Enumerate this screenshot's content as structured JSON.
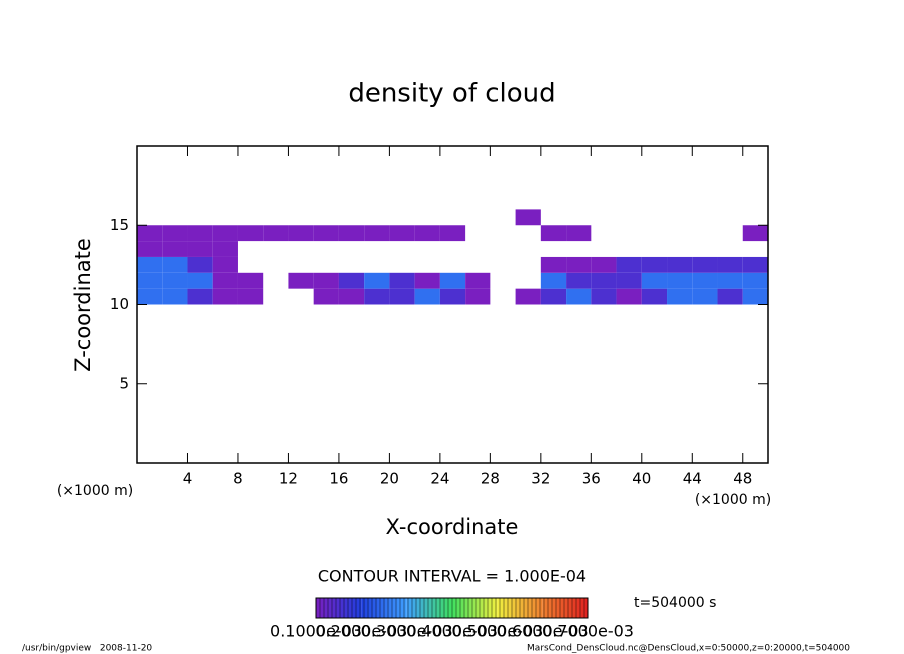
{
  "chart_data": {
    "type": "heatmap",
    "title": "density of cloud",
    "x_label": "X-coordinate",
    "y_label": "Z-coordinate",
    "x_unit": "(×1000 m)",
    "y_unit": "(×1000 m)",
    "xlim": [
      0,
      50
    ],
    "xticks": [
      4,
      8,
      12,
      16,
      20,
      24,
      28,
      32,
      36,
      40,
      44,
      48
    ],
    "ylim": [
      0,
      20
    ],
    "yticks": [
      5,
      10,
      15
    ],
    "x": [
      0,
      2,
      4,
      6,
      8,
      10,
      12,
      14,
      16,
      18,
      20,
      22,
      24,
      26,
      28,
      30,
      32,
      34,
      36,
      38,
      40,
      42,
      44,
      46,
      48,
      50
    ],
    "y": [
      10,
      11,
      12,
      13,
      14,
      15,
      16
    ],
    "values": [
      [
        0.00025,
        0.00025,
        0.00015,
        0.0001,
        0.0001,
        null,
        null,
        0.0001,
        0.0001,
        0.00015,
        0.00015,
        0.00025,
        0.00015,
        0.0001,
        null,
        0.0001,
        0.00015,
        0.00025,
        0.00015,
        0.0001,
        0.00015,
        0.00025,
        0.00025,
        0.00015,
        0.00025
      ],
      [
        0.00025,
        0.00025,
        0.00025,
        0.0001,
        0.0001,
        null,
        0.0001,
        0.0001,
        0.00015,
        0.00025,
        0.00015,
        0.0001,
        0.00025,
        0.0001,
        null,
        null,
        0.00025,
        0.00015,
        0.00015,
        0.00015,
        0.00025,
        0.00025,
        0.00025,
        0.00025,
        0.00025
      ],
      [
        0.00025,
        0.00025,
        0.00015,
        0.0001,
        null,
        null,
        null,
        null,
        null,
        null,
        null,
        null,
        null,
        null,
        null,
        null,
        0.0001,
        0.0001,
        0.0001,
        0.00015,
        0.00015,
        0.00015,
        0.00015,
        0.00015,
        0.00015
      ],
      [
        0.0001,
        0.0001,
        0.0001,
        0.0001,
        null,
        null,
        null,
        null,
        null,
        null,
        null,
        null,
        null,
        null,
        null,
        null,
        null,
        null,
        null,
        null,
        null,
        null,
        null,
        null,
        null
      ],
      [
        0.0001,
        0.0001,
        0.0001,
        0.0001,
        0.0001,
        0.0001,
        0.0001,
        0.0001,
        0.0001,
        0.0001,
        0.0001,
        0.0001,
        0.0001,
        null,
        null,
        null,
        0.0001,
        0.0001,
        null,
        null,
        null,
        null,
        null,
        null,
        0.0001
      ],
      [
        null,
        null,
        null,
        null,
        null,
        null,
        null,
        null,
        null,
        null,
        null,
        null,
        null,
        null,
        null,
        0.0001,
        null,
        null,
        null,
        null,
        null,
        null,
        null,
        null,
        null
      ]
    ],
    "colormap": [
      "#7a1fc0",
      "#2040e0",
      "#40a0ff",
      "#40e060",
      "#f0f040",
      "#f08030",
      "#e02020"
    ],
    "colorbar": {
      "title": "CONTOUR INTERVAL = 1.000E-04",
      "levels": [
        {
          "value": 0.0001,
          "label": "0.1000e-03"
        },
        {
          "value": 0.0002,
          "label": "0.2000e-03"
        },
        {
          "value": 0.0003,
          "label": "0.3000e-03"
        },
        {
          "value": 0.0004,
          "label": "0.4000e-03"
        },
        {
          "value": 0.0005,
          "label": "0.5000e-03"
        },
        {
          "value": 0.0006,
          "label": "0.6000e-03"
        },
        {
          "value": 0.0007,
          "label": "0.7000e-03"
        }
      ]
    },
    "time_label": "t=504000 s",
    "footer_left": "/usr/bin/gpview   2008-11-20",
    "footer_right": "MarsCond_DensCloud.nc@DensCloud,x=0:50000,z=0:20000,t=504000"
  }
}
